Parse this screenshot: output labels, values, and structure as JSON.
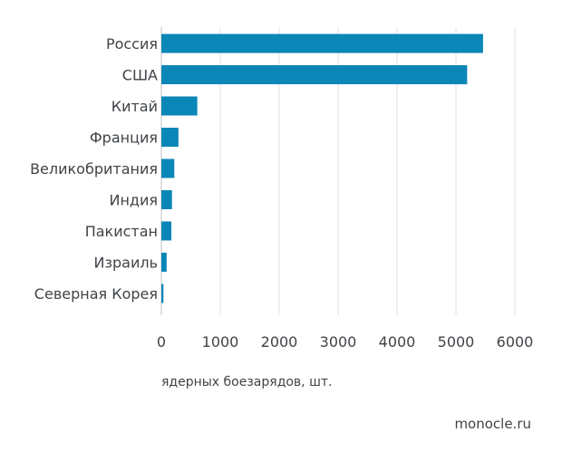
{
  "chart_data": {
    "type": "bar",
    "orientation": "horizontal",
    "categories": [
      "Россия",
      "США",
      "Китай",
      "Франция",
      "Великобритания",
      "Индия",
      "Пакистан",
      "Израиль",
      "Северная Корея"
    ],
    "values": [
      5460,
      5190,
      610,
      290,
      220,
      180,
      170,
      90,
      35
    ],
    "xlabel": "ядерных боезарядов, шт.",
    "xlim": [
      0,
      6000
    ],
    "xticks": [
      0,
      1000,
      2000,
      3000,
      4000,
      5000,
      6000
    ],
    "grid": "vertical",
    "bar_color": "#0a86b7",
    "grid_color": "#e2e2e2"
  },
  "source": "monocle.ru"
}
